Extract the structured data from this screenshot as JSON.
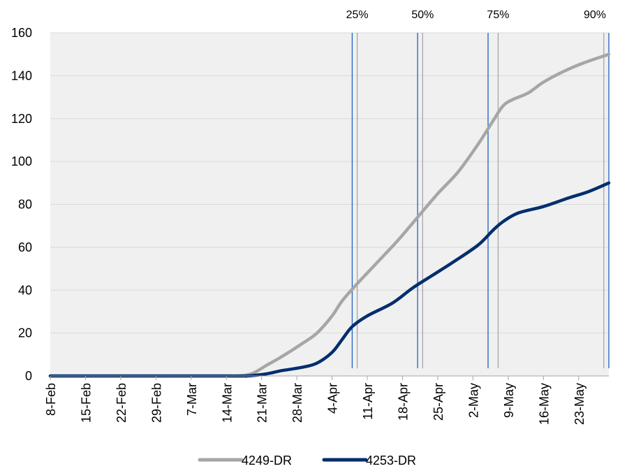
{
  "chart_data": {
    "type": "line",
    "title": "",
    "xlabel": "",
    "ylabel": "",
    "x_axis": {
      "type": "date",
      "start": "2024-02-08",
      "end": "2024-05-29",
      "tick_labels": [
        "8-Feb",
        "15-Feb",
        "22-Feb",
        "29-Feb",
        "7-Mar",
        "14-Mar",
        "21-Mar",
        "28-Mar",
        "4-Apr",
        "11-Apr",
        "18-Apr",
        "25-Apr",
        "2-May",
        "9-May",
        "16-May",
        "23-May"
      ],
      "tick_dates": [
        "2024-02-08",
        "2024-02-15",
        "2024-02-22",
        "2024-02-29",
        "2024-03-07",
        "2024-03-14",
        "2024-03-21",
        "2024-03-28",
        "2024-04-04",
        "2024-04-11",
        "2024-04-18",
        "2024-04-25",
        "2024-05-02",
        "2024-05-09",
        "2024-05-16",
        "2024-05-23"
      ]
    },
    "y_axis": {
      "ylim": [
        0,
        160
      ],
      "ticks": [
        0,
        20,
        40,
        60,
        80,
        100,
        120,
        140,
        160
      ]
    },
    "grid": "horizontal",
    "legend": "bottom",
    "series": [
      {
        "name": "4249-DR",
        "color": "#a6a6a6",
        "points": [
          [
            "2024-02-08",
            0
          ],
          [
            "2024-03-14",
            0
          ],
          [
            "2024-03-16",
            0
          ],
          [
            "2024-03-19",
            1
          ],
          [
            "2024-03-22",
            5
          ],
          [
            "2024-03-25",
            9
          ],
          [
            "2024-03-29",
            15
          ],
          [
            "2024-04-01",
            20
          ],
          [
            "2024-04-04",
            28
          ],
          [
            "2024-04-06",
            35
          ],
          [
            "2024-04-09",
            43
          ],
          [
            "2024-04-13",
            53
          ],
          [
            "2024-04-17",
            63
          ],
          [
            "2024-04-21",
            74
          ],
          [
            "2024-04-25",
            85
          ],
          [
            "2024-04-29",
            95
          ],
          [
            "2024-05-03",
            108
          ],
          [
            "2024-05-06",
            119
          ],
          [
            "2024-05-08",
            126
          ],
          [
            "2024-05-10",
            129
          ],
          [
            "2024-05-13",
            132
          ],
          [
            "2024-05-16",
            137
          ],
          [
            "2024-05-20",
            142
          ],
          [
            "2024-05-24",
            146
          ],
          [
            "2024-05-29",
            150
          ]
        ]
      },
      {
        "name": "4253-DR",
        "color": "#002e6e",
        "points": [
          [
            "2024-02-08",
            0
          ],
          [
            "2024-03-14",
            0
          ],
          [
            "2024-03-18",
            0
          ],
          [
            "2024-03-22",
            1
          ],
          [
            "2024-03-25",
            2.5
          ],
          [
            "2024-03-29",
            4
          ],
          [
            "2024-04-01",
            6
          ],
          [
            "2024-04-04",
            11
          ],
          [
            "2024-04-06",
            17
          ],
          [
            "2024-04-08",
            23
          ],
          [
            "2024-04-11",
            28
          ],
          [
            "2024-04-16",
            34
          ],
          [
            "2024-04-20",
            41
          ],
          [
            "2024-04-24",
            47
          ],
          [
            "2024-04-28",
            53
          ],
          [
            "2024-05-03",
            61
          ],
          [
            "2024-05-06",
            68
          ],
          [
            "2024-05-08",
            72
          ],
          [
            "2024-05-11",
            76
          ],
          [
            "2024-05-16",
            79
          ],
          [
            "2024-05-21",
            83
          ],
          [
            "2024-05-25",
            86
          ],
          [
            "2024-05-29",
            90
          ]
        ]
      }
    ],
    "marker_lines": [
      {
        "label": "25%",
        "lines": [
          {
            "date": "2024-04-08",
            "color": "#1f5fbf"
          },
          {
            "date": "2024-04-09",
            "color": "#a6a6a6"
          }
        ]
      },
      {
        "label": "50%",
        "lines": [
          {
            "date": "2024-04-21",
            "color": "#1f5fbf"
          },
          {
            "date": "2024-04-22",
            "color": "#a6a6a6"
          }
        ]
      },
      {
        "label": "75%",
        "lines": [
          {
            "date": "2024-05-05",
            "color": "#1f5fbf"
          },
          {
            "date": "2024-05-07",
            "color": "#a6a6a6"
          }
        ]
      },
      {
        "label": "90%",
        "lines": [
          {
            "date": "2024-05-28",
            "color": "#a6a6a6"
          },
          {
            "date": "2024-05-29",
            "color": "#1f5fbf"
          }
        ]
      }
    ],
    "colors": {
      "plot_background": "#f0f0f0",
      "gridline": "#d9d9d9",
      "axis": "#a6a6a6"
    }
  }
}
